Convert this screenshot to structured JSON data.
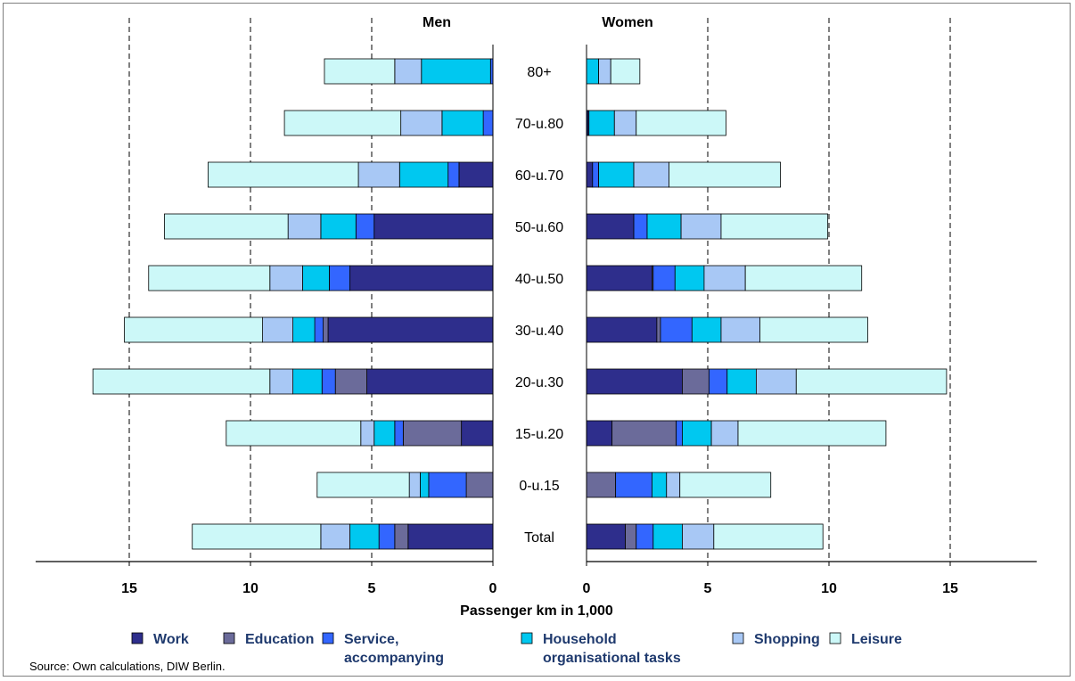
{
  "chart_data": {
    "type": "bar",
    "orientation": "horizontal",
    "stacked": true,
    "panels": [
      {
        "title": "Men",
        "direction": "left"
      },
      {
        "title": "Women",
        "direction": "right"
      }
    ],
    "categories": [
      "80+",
      "70-u.80",
      "60-u.70",
      "50-u.60",
      "40-u.50",
      "30-u.40",
      "20-u.30",
      "15-u.20",
      "0-u.15",
      "Total"
    ],
    "xlabel": "Passenger km in 1,000",
    "xlim": [
      0,
      18.5
    ],
    "xticks": [
      0,
      5,
      10,
      15
    ],
    "grid": "dashed vertical at 5, 10, 15",
    "legend_position": "bottom",
    "series": [
      {
        "name": "Work",
        "color": "#2e2e8c",
        "men": [
          0,
          0,
          1.4,
          4.9,
          5.9,
          6.8,
          5.2,
          1.3,
          0,
          3.5
        ],
        "women": [
          0,
          0.05,
          0.25,
          1.95,
          2.7,
          2.9,
          3.95,
          1.05,
          0,
          1.6
        ]
      },
      {
        "name": "Education",
        "color": "#6b6b9a",
        "men": [
          0,
          0,
          0,
          0,
          0,
          0.2,
          1.3,
          2.4,
          1.1,
          0.55
        ],
        "women": [
          0,
          0,
          0,
          0,
          0.05,
          0.15,
          1.1,
          2.65,
          1.2,
          0.45
        ]
      },
      {
        "name": "Service,\naccompanying",
        "color": "#3366ff",
        "men": [
          0.1,
          0.4,
          0.45,
          0.75,
          0.85,
          0.35,
          0.55,
          0.35,
          1.55,
          0.65
        ],
        "women": [
          0,
          0.05,
          0.25,
          0.55,
          0.9,
          1.3,
          0.75,
          0.25,
          1.5,
          0.7
        ]
      },
      {
        "name": "Household\norganisational tasks",
        "color": "#00c8f0",
        "men": [
          2.85,
          1.7,
          2.0,
          1.45,
          1.1,
          0.9,
          1.2,
          0.85,
          0.35,
          1.2
        ],
        "women": [
          0.5,
          1.05,
          1.45,
          1.4,
          1.2,
          1.2,
          1.2,
          1.2,
          0.6,
          1.2
        ]
      },
      {
        "name": "Shopping",
        "color": "#a8c8f5",
        "men": [
          1.1,
          1.7,
          1.7,
          1.35,
          1.35,
          1.25,
          0.95,
          0.55,
          0.45,
          1.2
        ],
        "women": [
          0.5,
          0.9,
          1.45,
          1.65,
          1.7,
          1.6,
          1.65,
          1.1,
          0.55,
          1.3
        ]
      },
      {
        "name": "Leisure",
        "color": "#ccf8f8",
        "men": [
          2.9,
          4.8,
          6.2,
          5.1,
          5.0,
          5.7,
          7.3,
          5.55,
          3.8,
          5.3
        ],
        "women": [
          1.2,
          3.7,
          4.6,
          4.4,
          4.8,
          4.45,
          6.2,
          6.1,
          3.75,
          4.5
        ]
      }
    ]
  },
  "source": "Source: Own calculations, DIW Berlin."
}
